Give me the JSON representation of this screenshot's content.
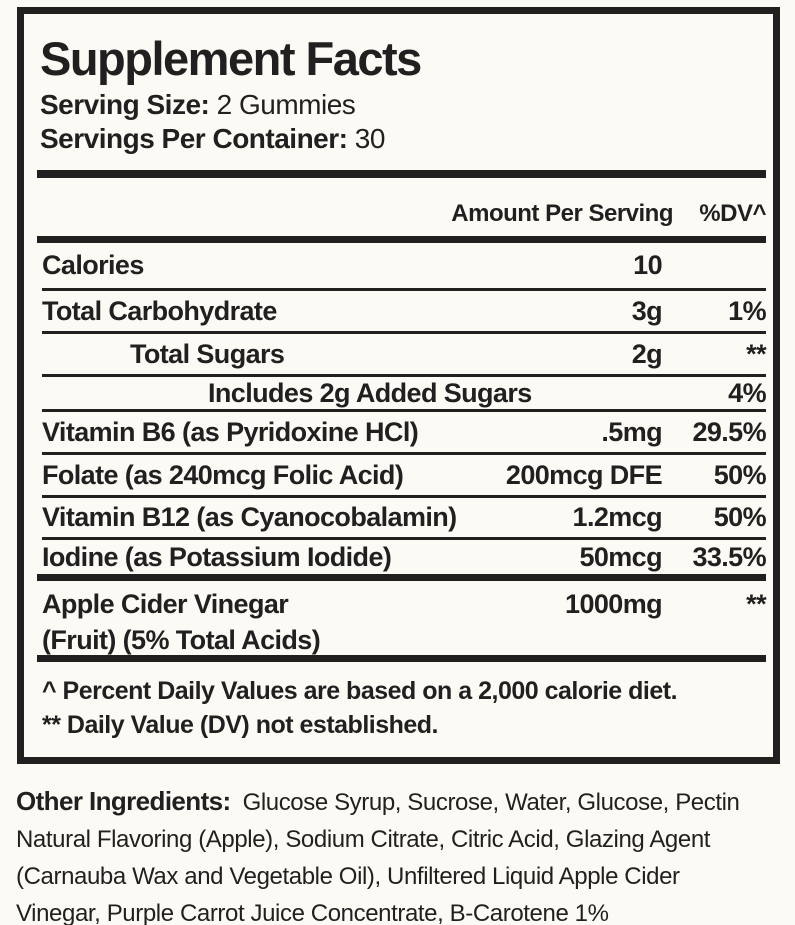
{
  "panel": {
    "title": "Supplement Facts",
    "serving_size_label": "Serving Size:",
    "serving_size_value": "2 Gummies",
    "servings_per_container_label": "Servings Per Container:",
    "servings_per_container_value": "30",
    "columns": {
      "amount_header": "Amount Per Serving",
      "dv_header": "%DV^"
    },
    "rows": [
      {
        "name": "Calories",
        "amount": "10",
        "dv": ""
      },
      {
        "name": "Total Carbohydrate",
        "amount": "3g",
        "dv": "1%"
      },
      {
        "name": "Total Sugars",
        "amount": "2g",
        "dv": "**"
      },
      {
        "name": "Includes 2g Added Sugars",
        "amount": "",
        "dv": "4%"
      },
      {
        "name": "Vitamin B6 (as Pyridoxine HCl)",
        "amount": ".5mg",
        "dv": "29.5%"
      },
      {
        "name": "Folate (as 240mcg Folic Acid)",
        "amount": "200mcg DFE",
        "dv": "50%"
      },
      {
        "name": "Vitamin B12 (as Cyanocobalamin)",
        "amount": "1.2mcg",
        "dv": "50%"
      },
      {
        "name": "Iodine (as Potassium Iodide)",
        "amount": "50mcg",
        "dv": "33.5%"
      },
      {
        "name": "Apple Cider Vinegar",
        "name2": "(Fruit) (5% Total Acids)",
        "amount": "1000mg",
        "dv": "**"
      }
    ],
    "footnotes": [
      "^ Percent Daily Values are based on a 2,000 calorie diet.",
      "** Daily Value (DV) not established."
    ]
  },
  "other_ingredients": {
    "label": "Other Ingredients:",
    "full_text": "Glucose Syrup, Sucrose, Water, Glucose, Pectin Natural Flavoring (Apple), Sodium Citrate, Citric Acid, Glazing Agent (Carnauba Wax and Vegetable Oil), Unfiltered Liquid Apple Cider Vinegar, Purple Carrot Juice Concentrate, B-Carotene 1%",
    "lines": [
      "Glucose Syrup, Sucrose, Water, Glucose, Pectin",
      "Natural Flavoring (Apple), Sodium Citrate, Citric Acid, Glazing Agent",
      "(Carnauba Wax and Vegetable Oil), Unfiltered Liquid Apple Cider",
      "Vinegar, Purple Carrot Juice Concentrate, B-Carotene 1%"
    ]
  },
  "colors": {
    "ink": "#231f20",
    "background": "#fcfaf4"
  }
}
